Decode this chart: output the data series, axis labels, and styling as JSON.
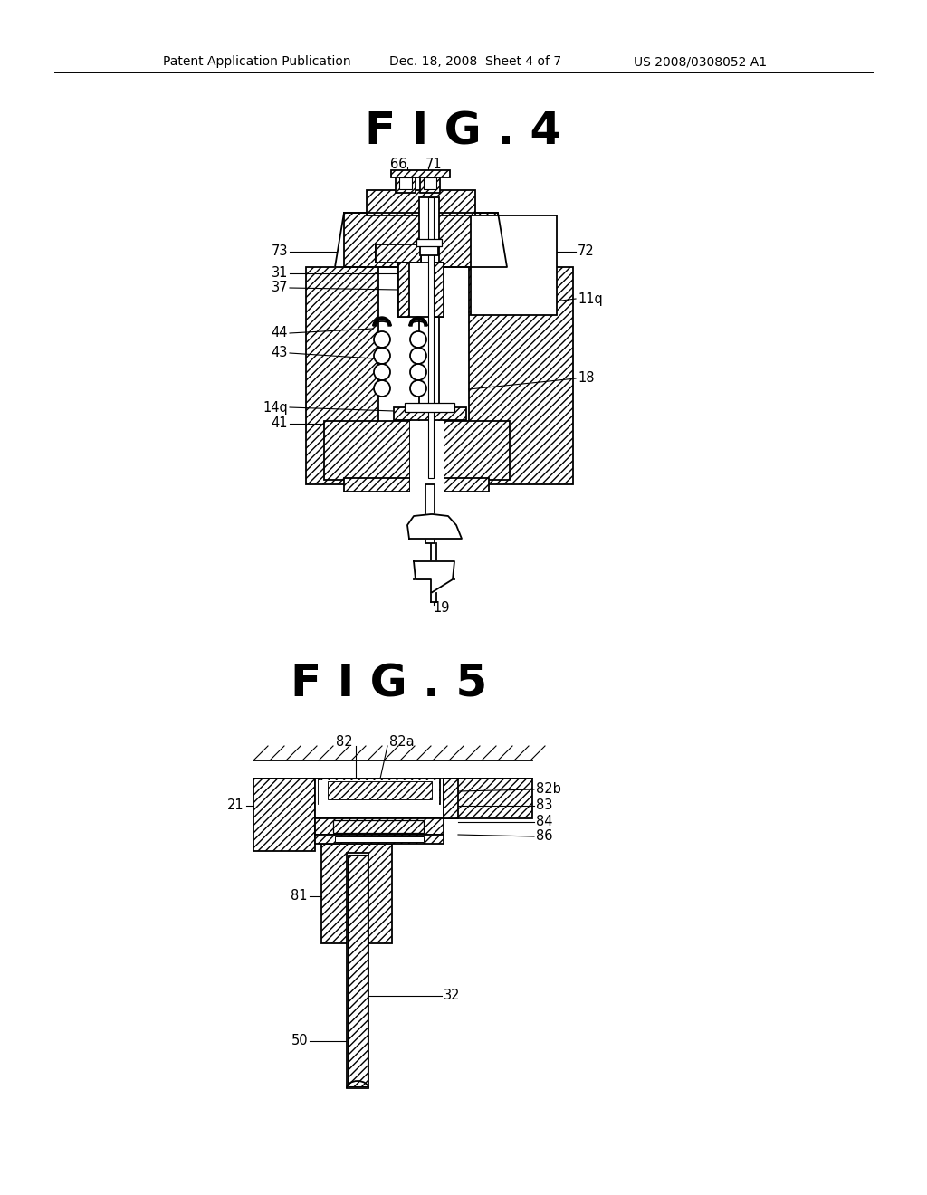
{
  "bg_color": "#ffffff",
  "title_fig4": "F I G . 4",
  "title_fig5": "F I G . 5",
  "header_left": "Patent Application Publication",
  "header_mid": "Dec. 18, 2008  Sheet 4 of 7",
  "header_right": "US 2008/0308052 A1"
}
